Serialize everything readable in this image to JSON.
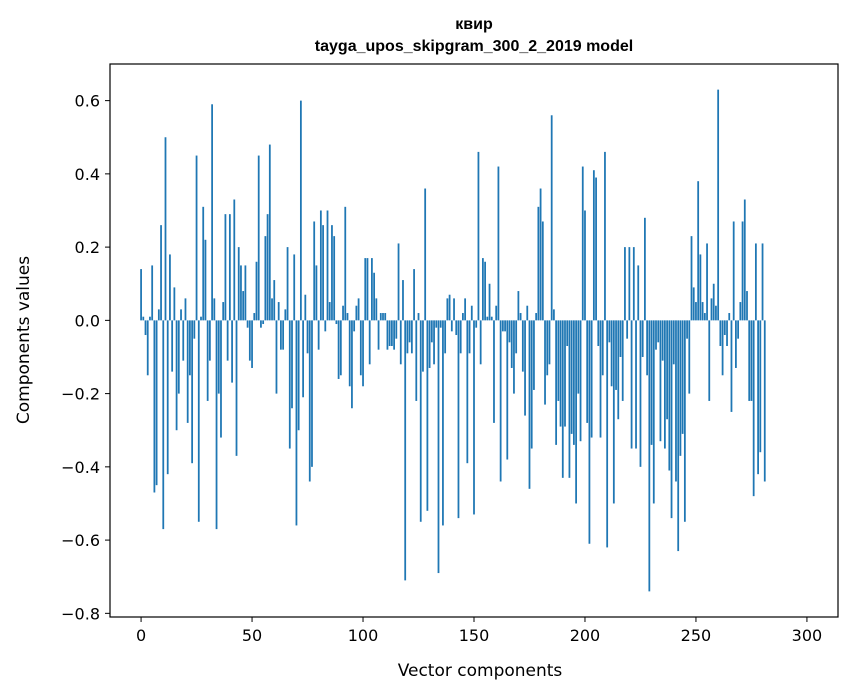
{
  "chart_data": {
    "type": "bar",
    "title": "квир",
    "subtitle": "tayga_upos_skipgram_300_2_2019 model",
    "xlabel": "Vector components",
    "ylabel": "Components values",
    "xlim": [
      -14,
      314
    ],
    "ylim": [
      -0.81,
      0.7
    ],
    "x_ticks": [
      0,
      50,
      100,
      150,
      200,
      250,
      300
    ],
    "x_tick_labels": [
      "0",
      "50",
      "100",
      "150",
      "200",
      "250",
      "300"
    ],
    "y_ticks": [
      -0.8,
      -0.6,
      -0.4,
      -0.2,
      0.0,
      0.2,
      0.4,
      0.6
    ],
    "y_tick_labels": [
      "−0.8",
      "−0.6",
      "−0.4",
      "−0.2",
      "0.0",
      "0.2",
      "0.4",
      "0.6"
    ],
    "bar_color": "#1f77b4",
    "values": [
      0.14,
      0.01,
      -0.04,
      -0.15,
      0.01,
      0.15,
      -0.47,
      -0.45,
      0.03,
      0.26,
      -0.57,
      0.5,
      -0.42,
      0.18,
      -0.14,
      0.09,
      -0.3,
      -0.2,
      0.03,
      -0.11,
      0.06,
      -0.28,
      -0.15,
      -0.39,
      -0.05,
      0.45,
      -0.55,
      0.01,
      0.31,
      0.22,
      -0.22,
      -0.11,
      0.59,
      0.06,
      -0.57,
      -0.2,
      -0.32,
      0.05,
      0.29,
      -0.11,
      0.29,
      -0.17,
      0.33,
      -0.37,
      0.2,
      0.15,
      0.08,
      0.15,
      -0.02,
      -0.11,
      -0.13,
      0.02,
      0.16,
      0.45,
      -0.02,
      -0.01,
      0.23,
      0.29,
      0.48,
      0.06,
      0.11,
      -0.2,
      0.05,
      -0.08,
      -0.08,
      0.03,
      0.2,
      -0.35,
      -0.24,
      0.18,
      -0.56,
      -0.3,
      0.6,
      -0.21,
      0.07,
      -0.09,
      -0.44,
      -0.4,
      0.27,
      0.15,
      -0.08,
      0.3,
      0.26,
      -0.03,
      0.3,
      0.05,
      0.26,
      0.23,
      -0.01,
      -0.16,
      -0.15,
      0.04,
      0.31,
      0.02,
      -0.18,
      -0.24,
      -0.03,
      0.04,
      0.06,
      -0.15,
      -0.18,
      0.17,
      0.17,
      -0.12,
      0.17,
      0.13,
      0.06,
      -0.08,
      0.02,
      0.02,
      0.02,
      -0.08,
      -0.07,
      -0.07,
      -0.08,
      -0.05,
      0.21,
      -0.12,
      0.11,
      -0.71,
      -0.09,
      -0.06,
      -0.09,
      0.14,
      -0.22,
      0.02,
      -0.55,
      -0.14,
      0.36,
      -0.52,
      -0.13,
      -0.06,
      -0.12,
      -0.02,
      -0.69,
      -0.02,
      -0.56,
      -0.09,
      0.06,
      0.07,
      -0.03,
      0.06,
      -0.04,
      -0.54,
      -0.09,
      0.02,
      0.06,
      -0.39,
      -0.09,
      0.04,
      -0.53,
      -0.02,
      0.46,
      -0.12,
      0.17,
      0.16,
      0.01,
      0.1,
      0.01,
      -0.28,
      0.04,
      0.42,
      -0.44,
      -0.03,
      -0.03,
      -0.38,
      -0.06,
      -0.13,
      -0.2,
      -0.09,
      0.08,
      0.02,
      -0.14,
      -0.26,
      0.04,
      -0.46,
      -0.35,
      -0.19,
      0.02,
      0.31,
      0.36,
      0.27,
      -0.23,
      -0.15,
      -0.12,
      0.56,
      0.03,
      -0.34,
      -0.22,
      -0.29,
      -0.43,
      -0.29,
      -0.07,
      -0.43,
      -0.31,
      -0.34,
      -0.5,
      -0.2,
      -0.33,
      0.42,
      0.3,
      -0.28,
      -0.61,
      -0.32,
      0.41,
      0.39,
      -0.07,
      -0.32,
      -0.15,
      0.46,
      -0.62,
      -0.06,
      -0.18,
      -0.5,
      -0.19,
      -0.27,
      -0.1,
      -0.22,
      0.2,
      -0.05,
      0.2,
      -0.35,
      0.2,
      -0.35,
      0.15,
      -0.4,
      -0.1,
      0.28,
      -0.15,
      -0.74,
      -0.34,
      -0.5,
      -0.08,
      -0.06,
      -0.33,
      -0.11,
      -0.35,
      -0.27,
      -0.41,
      -0.54,
      -0.12,
      -0.44,
      -0.63,
      -0.37,
      -0.31,
      -0.55,
      -0.05,
      -0.2,
      0.23,
      0.09,
      0.05,
      0.38,
      0.18,
      0.05,
      0.02,
      0.21,
      -0.22,
      0.06,
      0.1,
      0.04,
      0.63,
      -0.07,
      -0.15,
      -0.04,
      -0.07,
      0.02,
      -0.25,
      0.27,
      -0.13,
      -0.05,
      0.05,
      0.27,
      0.33,
      0.08,
      -0.22,
      -0.22,
      -0.48,
      0.21,
      -0.42,
      -0.36,
      0.21,
      -0.44
    ],
    "categories_range": [
      0,
      299
    ]
  }
}
